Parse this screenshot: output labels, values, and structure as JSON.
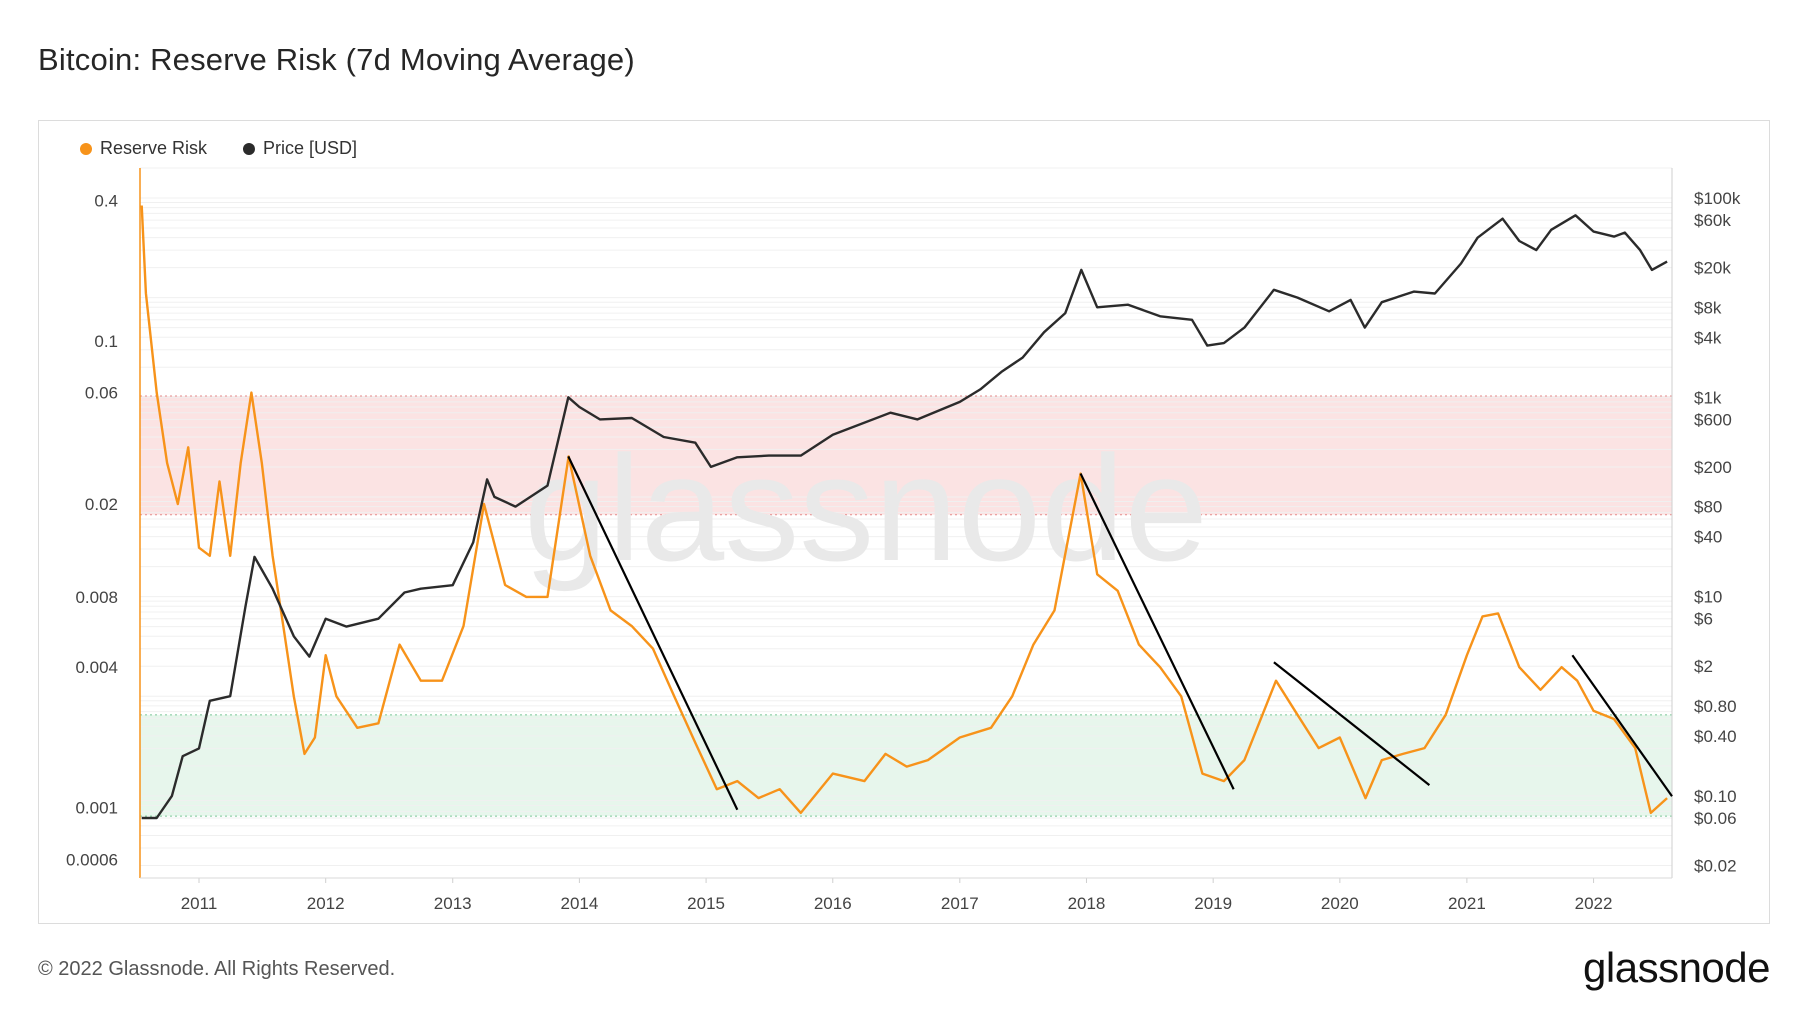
{
  "header": {
    "title": "Bitcoin: Reserve Risk (7d Moving Average)"
  },
  "footer": {
    "copyright": "© 2022 Glassnode. All Rights Reserved.",
    "brand": "glassnode"
  },
  "watermark": "glassnode",
  "colors": {
    "reserve_risk": "#f7931a",
    "price": "#2b2b2b",
    "red_band": "#fbe3e3",
    "green_band": "#e7f6ec"
  },
  "chart_data": {
    "type": "line",
    "title": "Bitcoin: Reserve Risk (7d Moving Average)",
    "legend_position": "top-left",
    "grid": true,
    "x_axis": {
      "type": "time",
      "range": [
        "2010-07-15",
        "2022-08-15"
      ],
      "tick_labels": [
        "2011",
        "2012",
        "2013",
        "2014",
        "2015",
        "2016",
        "2017",
        "2018",
        "2019",
        "2020",
        "2021",
        "2022"
      ]
    },
    "y_left": {
      "scale": "log",
      "range": [
        0.0005,
        0.55
      ],
      "tick_labels": [
        "0.4",
        "0.1",
        "0.06",
        "0.02",
        "0.008",
        "0.004",
        "0.001",
        "0.0006"
      ]
    },
    "y_right": {
      "scale": "log",
      "range": [
        0.015,
        200000
      ],
      "tick_labels": [
        "$100k",
        "$60k",
        "$20k",
        "$8k",
        "$4k",
        "$1k",
        "$600",
        "$200",
        "$80",
        "$40",
        "$10",
        "$6",
        "$2",
        "$0.80",
        "$0.40",
        "$0.10",
        "$0.06",
        "$0.02"
      ]
    },
    "bands": [
      {
        "name": "red",
        "y_range": [
          0.018,
          0.058
        ]
      },
      {
        "name": "green",
        "y_range": [
          0.00092,
          0.0025
        ]
      }
    ],
    "series": [
      {
        "name": "Reserve Risk",
        "axis": "left",
        "points": [
          [
            "2010-07-20",
            0.38
          ],
          [
            "2010-08-01",
            0.16
          ],
          [
            "2010-09-01",
            0.06
          ],
          [
            "2010-10-01",
            0.03
          ],
          [
            "2010-11-01",
            0.02
          ],
          [
            "2010-12-01",
            0.035
          ],
          [
            "2011-01-01",
            0.013
          ],
          [
            "2011-02-01",
            0.012
          ],
          [
            "2011-03-01",
            0.025
          ],
          [
            "2011-04-01",
            0.012
          ],
          [
            "2011-05-01",
            0.03
          ],
          [
            "2011-06-01",
            0.06
          ],
          [
            "2011-07-01",
            0.03
          ],
          [
            "2011-08-01",
            0.012
          ],
          [
            "2011-09-01",
            0.006
          ],
          [
            "2011-10-01",
            0.003
          ],
          [
            "2011-11-01",
            0.0017
          ],
          [
            "2011-12-01",
            0.002
          ],
          [
            "2012-01-01",
            0.0045
          ],
          [
            "2012-02-01",
            0.003
          ],
          [
            "2012-04-01",
            0.0022
          ],
          [
            "2012-06-01",
            0.0023
          ],
          [
            "2012-08-01",
            0.005
          ],
          [
            "2012-10-01",
            0.0035
          ],
          [
            "2012-12-01",
            0.0035
          ],
          [
            "2013-02-01",
            0.006
          ],
          [
            "2013-04-01",
            0.02
          ],
          [
            "2013-06-01",
            0.009
          ],
          [
            "2013-08-01",
            0.008
          ],
          [
            "2013-10-01",
            0.008
          ],
          [
            "2013-12-01",
            0.032
          ],
          [
            "2014-02-01",
            0.012
          ],
          [
            "2014-04-01",
            0.007
          ],
          [
            "2014-06-01",
            0.006
          ],
          [
            "2014-08-01",
            0.0048
          ],
          [
            "2014-10-01",
            0.003
          ],
          [
            "2014-12-01",
            0.0019
          ],
          [
            "2015-02-01",
            0.0012
          ],
          [
            "2015-04-01",
            0.0013
          ],
          [
            "2015-06-01",
            0.0011
          ],
          [
            "2015-08-01",
            0.0012
          ],
          [
            "2015-10-01",
            0.00095
          ],
          [
            "2016-01-01",
            0.0014
          ],
          [
            "2016-04-01",
            0.0013
          ],
          [
            "2016-06-01",
            0.0017
          ],
          [
            "2016-08-01",
            0.0015
          ],
          [
            "2016-10-01",
            0.0016
          ],
          [
            "2017-01-01",
            0.002
          ],
          [
            "2017-04-01",
            0.0022
          ],
          [
            "2017-06-01",
            0.003
          ],
          [
            "2017-08-01",
            0.005
          ],
          [
            "2017-10-01",
            0.007
          ],
          [
            "2017-12-15",
            0.027
          ],
          [
            "2018-02-01",
            0.01
          ],
          [
            "2018-04-01",
            0.0085
          ],
          [
            "2018-06-01",
            0.005
          ],
          [
            "2018-08-01",
            0.004
          ],
          [
            "2018-10-01",
            0.003
          ],
          [
            "2018-12-01",
            0.0014
          ],
          [
            "2019-02-01",
            0.0013
          ],
          [
            "2019-04-01",
            0.0016
          ],
          [
            "2019-07-01",
            0.0035
          ],
          [
            "2019-09-01",
            0.0025
          ],
          [
            "2019-11-01",
            0.0018
          ],
          [
            "2020-01-01",
            0.002
          ],
          [
            "2020-03-15",
            0.0011
          ],
          [
            "2020-05-01",
            0.0016
          ],
          [
            "2020-07-01",
            0.0017
          ],
          [
            "2020-09-01",
            0.0018
          ],
          [
            "2020-11-01",
            0.0025
          ],
          [
            "2021-01-01",
            0.0045
          ],
          [
            "2021-02-15",
            0.0066
          ],
          [
            "2021-04-01",
            0.0068
          ],
          [
            "2021-06-01",
            0.004
          ],
          [
            "2021-08-01",
            0.0032
          ],
          [
            "2021-10-01",
            0.004
          ],
          [
            "2021-11-15",
            0.0035
          ],
          [
            "2022-01-01",
            0.0026
          ],
          [
            "2022-03-01",
            0.0024
          ],
          [
            "2022-05-01",
            0.0018
          ],
          [
            "2022-06-15",
            0.00095
          ],
          [
            "2022-08-01",
            0.0011
          ]
        ]
      },
      {
        "name": "Price [USD]",
        "axis": "right",
        "points": [
          [
            "2010-07-20",
            0.06
          ],
          [
            "2010-09-01",
            0.06
          ],
          [
            "2010-10-15",
            0.1
          ],
          [
            "2010-11-15",
            0.25
          ],
          [
            "2011-01-01",
            0.3
          ],
          [
            "2011-02-01",
            0.9
          ],
          [
            "2011-04-01",
            1.0
          ],
          [
            "2011-05-15",
            8
          ],
          [
            "2011-06-10",
            25
          ],
          [
            "2011-08-01",
            12
          ],
          [
            "2011-10-01",
            4
          ],
          [
            "2011-11-15",
            2.5
          ],
          [
            "2012-01-01",
            6
          ],
          [
            "2012-03-01",
            5
          ],
          [
            "2012-06-01",
            6
          ],
          [
            "2012-08-15",
            11
          ],
          [
            "2012-10-01",
            12
          ],
          [
            "2013-01-01",
            13
          ],
          [
            "2013-03-01",
            35
          ],
          [
            "2013-04-10",
            150
          ],
          [
            "2013-05-01",
            100
          ],
          [
            "2013-07-01",
            80
          ],
          [
            "2013-10-01",
            130
          ],
          [
            "2013-11-30",
            1000
          ],
          [
            "2014-01-01",
            800
          ],
          [
            "2014-03-01",
            600
          ],
          [
            "2014-06-01",
            620
          ],
          [
            "2014-09-01",
            400
          ],
          [
            "2014-12-01",
            350
          ],
          [
            "2015-01-15",
            200
          ],
          [
            "2015-04-01",
            250
          ],
          [
            "2015-07-01",
            260
          ],
          [
            "2015-10-01",
            260
          ],
          [
            "2016-01-01",
            420
          ],
          [
            "2016-06-15",
            700
          ],
          [
            "2016-09-01",
            600
          ],
          [
            "2017-01-01",
            900
          ],
          [
            "2017-03-01",
            1200
          ],
          [
            "2017-05-01",
            1800
          ],
          [
            "2017-07-01",
            2500
          ],
          [
            "2017-09-01",
            4500
          ],
          [
            "2017-11-01",
            7000
          ],
          [
            "2017-12-17",
            19000
          ],
          [
            "2018-02-01",
            8000
          ],
          [
            "2018-05-01",
            8500
          ],
          [
            "2018-08-01",
            6500
          ],
          [
            "2018-11-01",
            6000
          ],
          [
            "2018-12-15",
            3300
          ],
          [
            "2019-02-01",
            3500
          ],
          [
            "2019-04-01",
            5000
          ],
          [
            "2019-06-25",
            12000
          ],
          [
            "2019-09-01",
            10000
          ],
          [
            "2019-12-01",
            7300
          ],
          [
            "2020-02-01",
            9500
          ],
          [
            "2020-03-13",
            5000
          ],
          [
            "2020-05-01",
            9000
          ],
          [
            "2020-08-01",
            11500
          ],
          [
            "2020-10-01",
            11000
          ],
          [
            "2020-12-15",
            22000
          ],
          [
            "2021-02-01",
            40000
          ],
          [
            "2021-04-14",
            62000
          ],
          [
            "2021-06-01",
            37000
          ],
          [
            "2021-07-20",
            30000
          ],
          [
            "2021-09-01",
            48000
          ],
          [
            "2021-11-10",
            67000
          ],
          [
            "2022-01-01",
            46000
          ],
          [
            "2022-03-01",
            41000
          ],
          [
            "2022-04-01",
            45000
          ],
          [
            "2022-05-15",
            30000
          ],
          [
            "2022-06-18",
            19000
          ],
          [
            "2022-08-01",
            23000
          ]
        ]
      }
    ],
    "annotations": [
      {
        "type": "trend-line",
        "from": [
          "2013-11-30",
          0.032
        ],
        "to": [
          "2015-04-01",
          0.00098
        ]
      },
      {
        "type": "trend-line",
        "from": [
          "2017-12-15",
          0.027
        ],
        "to": [
          "2019-03-01",
          0.0012
        ]
      },
      {
        "type": "trend-line",
        "from": [
          "2019-06-25",
          0.0042
        ],
        "to": [
          "2020-09-15",
          0.00125
        ]
      },
      {
        "type": "trend-line",
        "from": [
          "2021-11-01",
          0.0045
        ],
        "to": [
          "2022-08-15",
          0.00112
        ]
      }
    ]
  }
}
